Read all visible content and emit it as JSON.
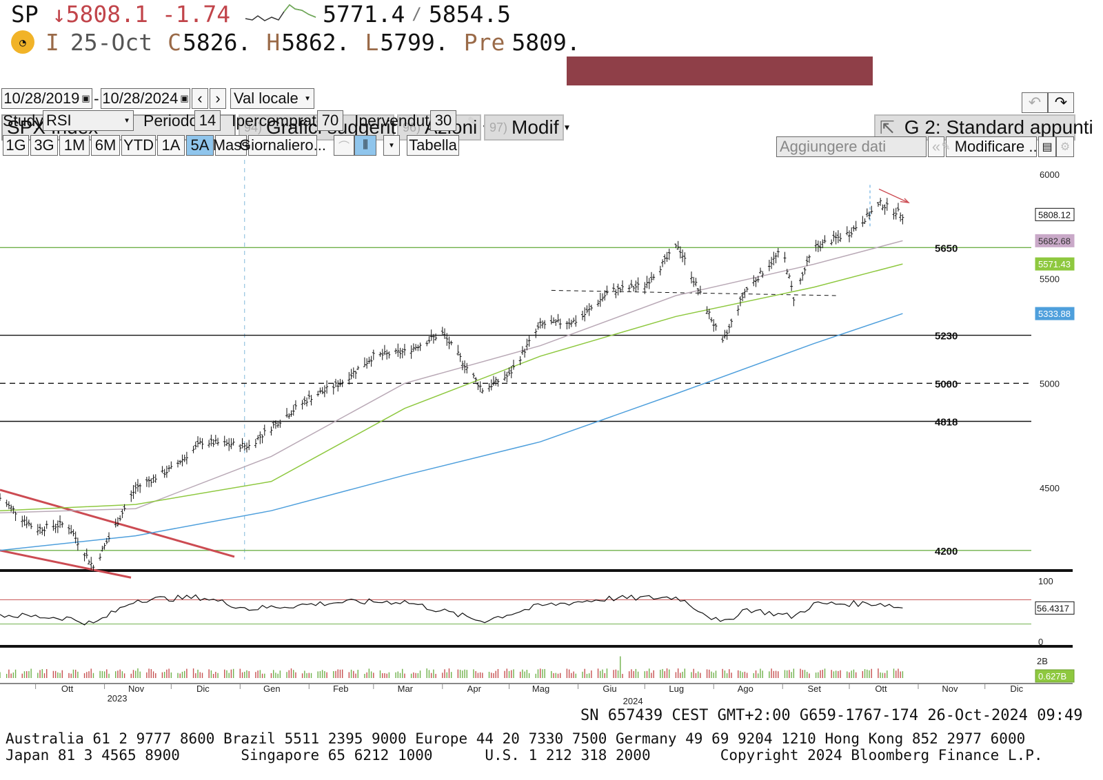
{
  "quote": {
    "ticker": "SP",
    "last": "↓5808.1",
    "change": "-1.74",
    "price_a": "5771.4",
    "separator": "/",
    "price_b": "5854.5",
    "i_label": "I",
    "date": "25-Oct",
    "c_label": "C",
    "close": "5826.",
    "h_label": "H",
    "high": "5862.",
    "l_label": "L",
    "low": "5799.",
    "pre_label": "Pre",
    "pre": "5809."
  },
  "toolbar": {
    "security": "SPX Index",
    "menu_charts_num": "94)",
    "menu_charts": "Grafici suggeriti",
    "menu_actions_num": "96)",
    "menu_actions": "Azioni",
    "menu_modif_num": "97)",
    "menu_modif": "Modif",
    "layout": "G 2: Standard appunti",
    "start_date": "10/28/2019",
    "range_sep": "-",
    "end_date": "10/28/2024",
    "currency": "Val locale",
    "study_label": "Study",
    "study_value": "RSI",
    "period_label": "Periodo",
    "period_value": "14",
    "overbought_label": "Ipercomprato",
    "overbought_value": "70",
    "oversold_label": "Ipervenduto",
    "oversold_value": "30",
    "ranges": [
      "1G",
      "3G",
      "1M",
      "6M",
      "YTD",
      "1A",
      "5A",
      "Mass",
      "Giornaliero..."
    ],
    "active_range": "5A",
    "table_label": "Tabella",
    "add_data_placeholder": "Aggiungere dati",
    "modify_label": "Modificare ..."
  },
  "colors": {
    "last_price_red": "#c1444a",
    "header_strip": "#8f3f48",
    "active_range_bg": "#8fc5ec",
    "ma_gray": "#b9a9b6",
    "ma_green": "#8ec83f",
    "ma_blue": "#4e9fdc",
    "level_green": "#6fb04a",
    "trend_red": "#cc4b52"
  },
  "chart_data": {
    "type": "line",
    "title": "SPX Index",
    "price_axis": {
      "ticks": [
        4500,
        5000,
        5500,
        6000
      ],
      "ylim": [
        4150,
        6050
      ]
    },
    "x_ticks": [
      "Ott",
      "Nov",
      "Dic",
      "Gen",
      "Feb",
      "Mar",
      "Apr",
      "Mag",
      "Giu",
      "Lug",
      "Ago",
      "Set",
      "Ott",
      "Nov",
      "Dic"
    ],
    "x_year_labels": [
      "2023",
      "2024"
    ],
    "series": [
      {
        "name": "SPX",
        "kind": "ohlc-bars",
        "x": [
          "2023-09-15",
          "2023-10-01",
          "2023-10-15",
          "2023-10-27",
          "2023-11-15",
          "2023-12-01",
          "2023-12-15",
          "2024-01-05",
          "2024-01-15",
          "2024-02-01",
          "2024-02-15",
          "2024-03-01",
          "2024-03-15",
          "2024-04-01",
          "2024-04-19",
          "2024-05-01",
          "2024-05-15",
          "2024-06-01",
          "2024-06-15",
          "2024-07-01",
          "2024-07-16",
          "2024-08-05",
          "2024-08-15",
          "2024-09-01",
          "2024-09-06",
          "2024-09-15",
          "2024-10-01",
          "2024-10-15",
          "2024-10-25"
        ],
        "values": [
          4450,
          4300,
          4330,
          4120,
          4500,
          4590,
          4720,
          4700,
          4790,
          4930,
          5000,
          5130,
          5150,
          5240,
          4970,
          5040,
          5280,
          5300,
          5440,
          5470,
          5660,
          5190,
          5440,
          5640,
          5410,
          5650,
          5720,
          5860,
          5808
        ]
      },
      {
        "name": "5682.68",
        "kind": "moving-average",
        "x": [
          "2023-09-15",
          "2023-11-15",
          "2024-01-15",
          "2024-03-15",
          "2024-05-15",
          "2024-07-15",
          "2024-09-15",
          "2024-10-25"
        ],
        "values": [
          4380,
          4400,
          4650,
          5000,
          5180,
          5420,
          5570,
          5682.68
        ]
      },
      {
        "name": "5571.43",
        "kind": "moving-average",
        "x": [
          "2023-09-15",
          "2023-11-15",
          "2024-01-15",
          "2024-03-15",
          "2024-05-15",
          "2024-07-15",
          "2024-09-15",
          "2024-10-25"
        ],
        "values": [
          4390,
          4420,
          4530,
          4880,
          5130,
          5320,
          5460,
          5571.43
        ]
      },
      {
        "name": "5333.88",
        "kind": "moving-average",
        "x": [
          "2023-09-15",
          "2023-11-15",
          "2024-01-15",
          "2024-03-15",
          "2024-05-15",
          "2024-07-15",
          "2024-09-15",
          "2024-10-25"
        ],
        "values": [
          4200,
          4270,
          4390,
          4560,
          4720,
          4950,
          5190,
          5333.88
        ]
      }
    ],
    "price_tags": [
      "5808.12",
      "5682.68",
      "5571.43",
      "5333.88"
    ],
    "levels": [
      {
        "value": 5650,
        "label": "5650",
        "style": "green"
      },
      {
        "value": 5230,
        "label": "5230",
        "style": "solid"
      },
      {
        "value": 5000,
        "label": "5000",
        "style": "dashed"
      },
      {
        "value": 4818,
        "label": "4818",
        "style": "solid"
      },
      {
        "value": 4200,
        "label": "4200",
        "style": "green"
      }
    ],
    "rsi": {
      "axis_ticks": [
        "100",
        "0"
      ],
      "last": "56.4317",
      "overbought": 70,
      "oversold": 30,
      "x": [
        "2023-09-15",
        "2023-10-15",
        "2023-10-27",
        "2023-11-15",
        "2023-12-15",
        "2024-01-05",
        "2024-02-15",
        "2024-03-15",
        "2024-04-19",
        "2024-05-15",
        "2024-06-15",
        "2024-07-16",
        "2024-08-05",
        "2024-08-15",
        "2024-09-06",
        "2024-09-15",
        "2024-10-15",
        "2024-10-25"
      ],
      "values": [
        45,
        40,
        30,
        70,
        74,
        55,
        66,
        67,
        35,
        60,
        72,
        74,
        30,
        55,
        42,
        63,
        64,
        56.43
      ]
    },
    "volume": {
      "axis_tick": "2B",
      "last": "0.627B"
    }
  },
  "footer": {
    "session": "SN 657439 CEST GMT+2:00 G659-1767-174 26-Oct-2024 09:49",
    "line1": "Australia 61 2 9777 8600 Brazil 5511 2395 9000 Europe 44 20 7330 7500 Germany 49 69 9204 1210 Hong Kong 852 2977 6000",
    "line2": "Japan 81 3 4565 8900       Singapore 65 6212 1000      U.S. 1 212 318 2000        Copyright 2024 Bloomberg Finance L.P."
  }
}
